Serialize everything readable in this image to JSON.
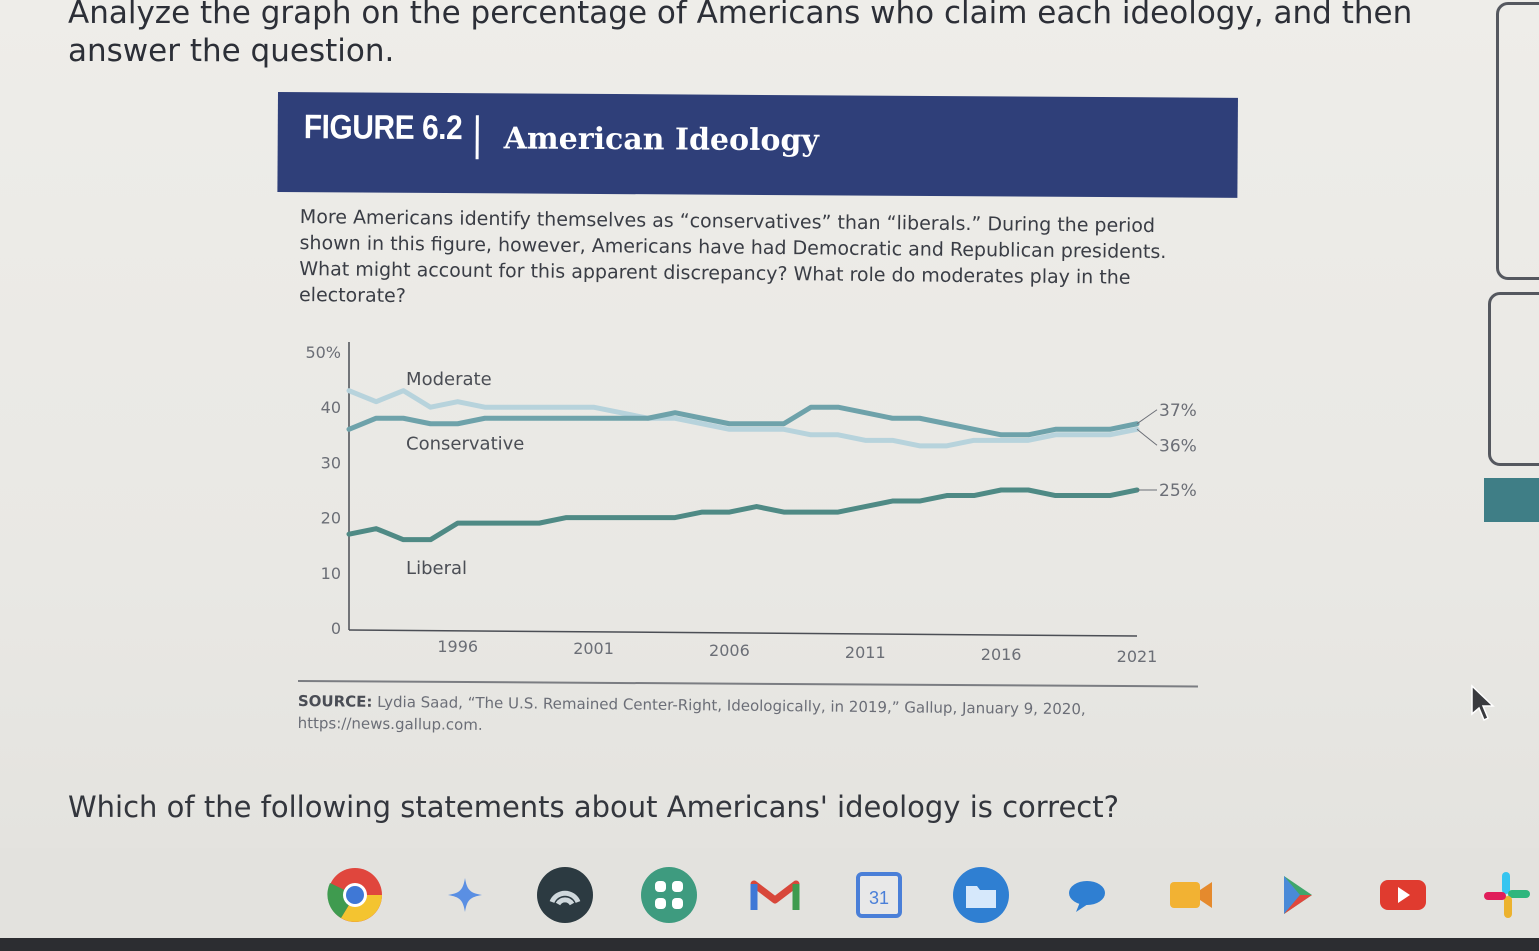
{
  "heading": "Analyze the graph on the percentage of Americans who claim each ideology, and then answer the question.",
  "figure": {
    "number": "FIGURE 6.2",
    "title": "American Ideology",
    "caption": "More Americans identify themselves as “conservatives” than “liberals.” During the period shown in this figure, however, Americans have had Democratic and Republican presidents. What might account for this apparent discrepancy? What role do moderates play in the electorate?"
  },
  "chart_data": {
    "type": "line",
    "ylim": [
      0,
      50
    ],
    "xlim": [
      1992,
      2021
    ],
    "y_ticks": [
      "0",
      "10",
      "20",
      "30",
      "40",
      "50%"
    ],
    "x_ticks": [
      "1996",
      "2001",
      "2006",
      "2011",
      "2016",
      "2021"
    ],
    "x_tick_values": [
      1996,
      2001,
      2006,
      2011,
      2016,
      2021
    ],
    "y_tick_values": [
      0,
      10,
      20,
      30,
      40,
      50
    ],
    "series": [
      {
        "name": "Moderate",
        "color": "#b7d3dc",
        "end_label": "36%",
        "x": [
          1992,
          1993,
          1994,
          1995,
          1996,
          1997,
          1998,
          1999,
          2000,
          2001,
          2002,
          2003,
          2004,
          2005,
          2006,
          2007,
          2008,
          2009,
          2010,
          2011,
          2012,
          2013,
          2014,
          2015,
          2016,
          2017,
          2018,
          2019,
          2020,
          2021
        ],
        "y": [
          43,
          41,
          43,
          40,
          41,
          40,
          40,
          40,
          40,
          40,
          39,
          38,
          38,
          37,
          36,
          36,
          36,
          35,
          35,
          34,
          34,
          33,
          33,
          34,
          34,
          34,
          35,
          35,
          35,
          36
        ]
      },
      {
        "name": "Conservative",
        "color": "#6ea2aa",
        "end_label": "37%",
        "x": [
          1992,
          1993,
          1994,
          1995,
          1996,
          1997,
          1998,
          1999,
          2000,
          2001,
          2002,
          2003,
          2004,
          2005,
          2006,
          2007,
          2008,
          2009,
          2010,
          2011,
          2012,
          2013,
          2014,
          2015,
          2016,
          2017,
          2018,
          2019,
          2020,
          2021
        ],
        "y": [
          36,
          38,
          38,
          37,
          37,
          38,
          38,
          38,
          38,
          38,
          38,
          38,
          39,
          38,
          37,
          37,
          37,
          40,
          40,
          39,
          38,
          38,
          37,
          36,
          35,
          35,
          36,
          36,
          36,
          37
        ]
      },
      {
        "name": "Liberal",
        "color": "#4f8a85",
        "end_label": "25%",
        "x": [
          1992,
          1993,
          1994,
          1995,
          1996,
          1997,
          1998,
          1999,
          2000,
          2001,
          2002,
          2003,
          2004,
          2005,
          2006,
          2007,
          2008,
          2009,
          2010,
          2011,
          2012,
          2013,
          2014,
          2015,
          2016,
          2017,
          2018,
          2019,
          2020,
          2021
        ],
        "y": [
          17,
          18,
          16,
          16,
          19,
          19,
          19,
          19,
          20,
          20,
          20,
          20,
          20,
          21,
          21,
          22,
          21,
          21,
          21,
          22,
          23,
          23,
          24,
          24,
          25,
          25,
          24,
          24,
          24,
          25
        ]
      }
    ]
  },
  "source": {
    "label": "SOURCE:",
    "text": "Lydia Saad, “The U.S. Remained Center-Right, Ideologically, in 2019,” Gallup, January 9, 2020, https://news.gallup.com."
  },
  "question": "Which of the following statements about Americans' ideology is correct?",
  "dock": {
    "icons": [
      "chrome-icon",
      "gemini-icon",
      "podcast-icon",
      "launcher-icon",
      "gmail-icon",
      "calendar-icon",
      "files-icon",
      "chat-icon",
      "video-icon",
      "play-store-icon",
      "youtube-icon",
      "slack-icon"
    ],
    "calendar_day": "31"
  }
}
